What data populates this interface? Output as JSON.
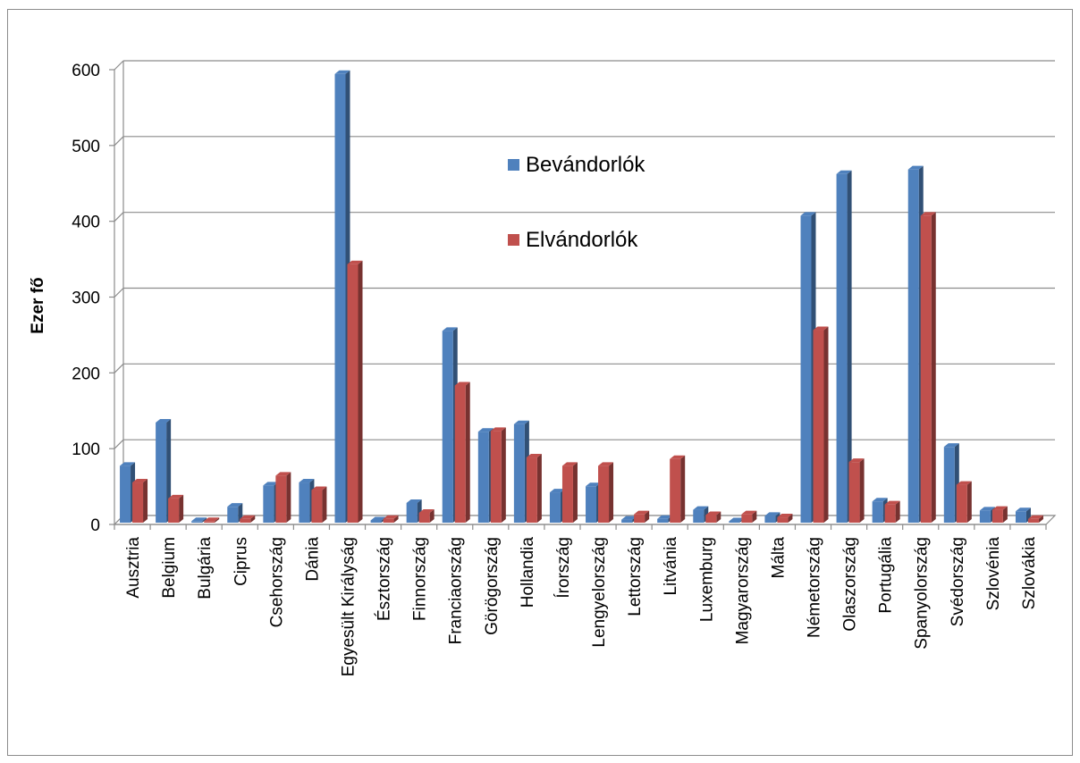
{
  "chart_data": {
    "type": "bar",
    "title": "",
    "xlabel": "",
    "ylabel": "Ezer fő",
    "ylim": [
      0,
      600
    ],
    "yticks": [
      0,
      100,
      200,
      300,
      400,
      500,
      600
    ],
    "grid": true,
    "legend_position": "top-center",
    "categories": [
      "Ausztria",
      "Belgium",
      "Bulgária",
      "Ciprus",
      "Csehország",
      "Dánia",
      "Egyesült Királyság",
      "Észtország",
      "Finnország",
      "Franciaország",
      "Görögország",
      "Hollandia",
      "Írország",
      "Lengyelország",
      "Lettország",
      "Litvánia",
      "Luxemburg",
      "Magyarország",
      "Málta",
      "Németország",
      "Olaszország",
      "Portugália",
      "Spanyolország",
      "Svédország",
      "Szlovénia",
      "Szlovákia"
    ],
    "series": [
      {
        "name": "Bevándorlók",
        "color": "#4f81bd",
        "values": [
          75,
          132,
          2,
          21,
          49,
          53,
          592,
          3,
          26,
          253,
          120,
          130,
          40,
          48,
          4,
          5,
          17,
          0,
          9,
          405,
          460,
          28,
          466,
          100,
          16,
          15
        ]
      },
      {
        "name": "Elvándorlók",
        "color": "#c0504d",
        "values": [
          53,
          32,
          2,
          5,
          62,
          43,
          341,
          5,
          13,
          181,
          121,
          86,
          75,
          75,
          11,
          84,
          10,
          11,
          7,
          254,
          80,
          24,
          405,
          50,
          17,
          5
        ]
      }
    ]
  }
}
